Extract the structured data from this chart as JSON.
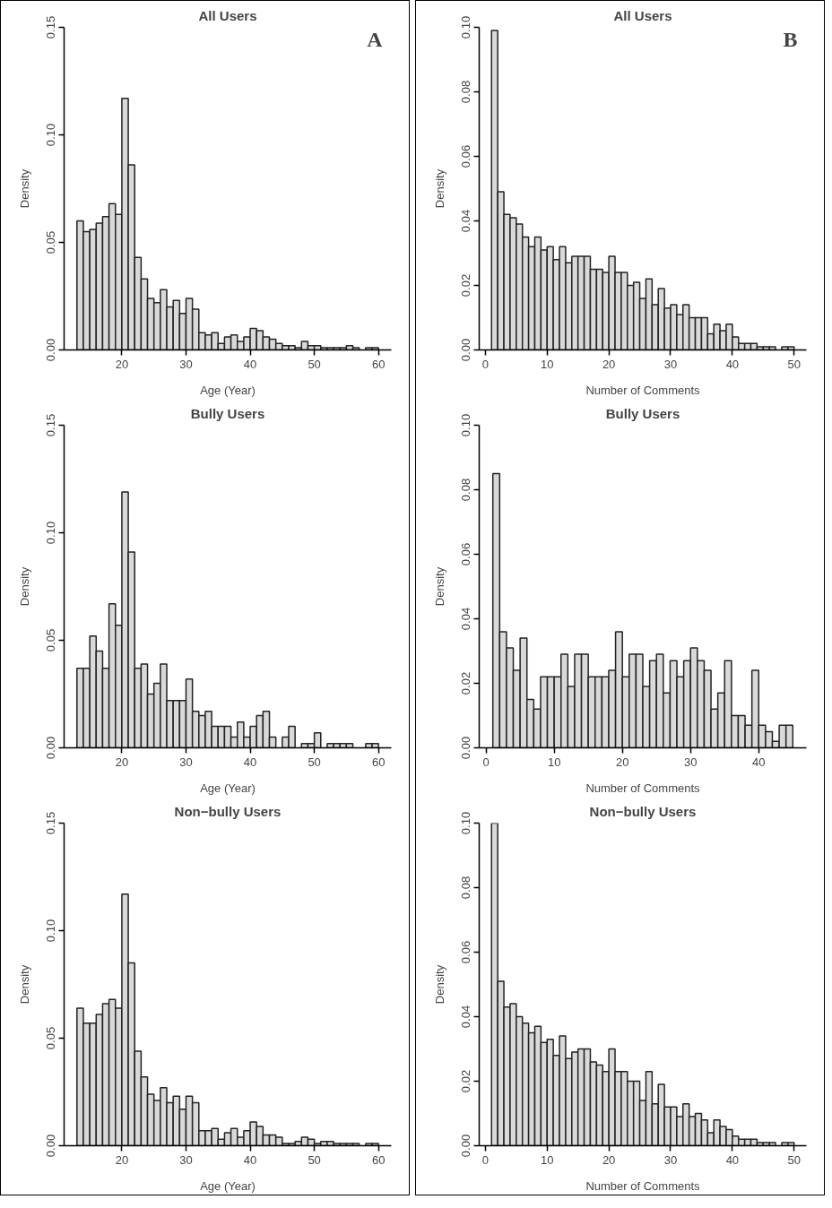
{
  "chart_data": [
    {
      "type": "histogram",
      "title": "All Users",
      "annotations": [
        "A"
      ],
      "xlabel": "Age (Year)",
      "ylabel": "Density",
      "color": "#d9d9d9",
      "xlim": [
        11,
        62
      ],
      "xticks": [
        20,
        30,
        40,
        50,
        60
      ],
      "ylim": [
        0,
        0.15
      ],
      "yticks": [
        {
          "value": 0,
          "label": "0.00"
        },
        {
          "value": 0.05,
          "label": "0.05"
        },
        {
          "value": 0.1,
          "label": "0.10"
        },
        {
          "value": 0.15,
          "label": "0.15"
        }
      ],
      "grid": false,
      "bins": [
        13,
        14,
        15,
        16,
        17,
        18,
        19,
        20,
        21,
        22,
        23,
        24,
        25,
        26,
        27,
        28,
        29,
        30,
        31,
        32,
        33,
        34,
        35,
        36,
        37,
        38,
        39,
        40,
        41,
        42,
        43,
        44,
        45,
        46,
        47,
        48,
        49,
        50,
        51,
        52,
        53,
        54,
        55,
        56,
        57,
        58,
        59,
        60
      ],
      "values": [
        0.06,
        0.055,
        0.056,
        0.059,
        0.062,
        0.068,
        0.063,
        0.117,
        0.086,
        0.043,
        0.033,
        0.024,
        0.022,
        0.028,
        0.02,
        0.023,
        0.017,
        0.024,
        0.019,
        0.008,
        0.007,
        0.008,
        0.003,
        0.006,
        0.007,
        0.004,
        0.006,
        0.01,
        0.009,
        0.006,
        0.005,
        0.003,
        0.002,
        0.002,
        0.001,
        0.004,
        0.002,
        0.002,
        0.001,
        0.001,
        0.001,
        0.001,
        0.002,
        0.001,
        0.0,
        0.001,
        0.001
      ]
    },
    {
      "type": "histogram",
      "title": "All Users",
      "annotations": [
        "B"
      ],
      "xlabel": "Number of Comments",
      "ylabel": "Density",
      "color": "#d9d9d9",
      "xlim": [
        -1,
        52
      ],
      "xticks": [
        0,
        10,
        20,
        30,
        40,
        50
      ],
      "ylim": [
        0,
        0.1
      ],
      "yticks": [
        {
          "value": 0,
          "label": "0.00"
        },
        {
          "value": 0.02,
          "label": "0.02"
        },
        {
          "value": 0.04,
          "label": "0.04"
        },
        {
          "value": 0.06,
          "label": "0.06"
        },
        {
          "value": 0.08,
          "label": "0.08"
        },
        {
          "value": 0.1,
          "label": "0.10"
        }
      ],
      "grid": false,
      "bins": [
        1,
        2,
        3,
        4,
        5,
        6,
        7,
        8,
        9,
        10,
        11,
        12,
        13,
        14,
        15,
        16,
        17,
        18,
        19,
        20,
        21,
        22,
        23,
        24,
        25,
        26,
        27,
        28,
        29,
        30,
        31,
        32,
        33,
        34,
        35,
        36,
        37,
        38,
        39,
        40,
        41,
        42,
        43,
        44,
        45,
        46,
        47,
        48,
        49,
        50
      ],
      "values": [
        0.099,
        0.049,
        0.042,
        0.041,
        0.039,
        0.035,
        0.032,
        0.035,
        0.031,
        0.032,
        0.028,
        0.032,
        0.027,
        0.029,
        0.029,
        0.029,
        0.025,
        0.025,
        0.024,
        0.029,
        0.024,
        0.024,
        0.02,
        0.021,
        0.016,
        0.022,
        0.014,
        0.019,
        0.013,
        0.014,
        0.011,
        0.014,
        0.01,
        0.01,
        0.01,
        0.005,
        0.008,
        0.006,
        0.008,
        0.004,
        0.002,
        0.002,
        0.002,
        0.001,
        0.001,
        0.001,
        0.0,
        0.001,
        0.001
      ]
    },
    {
      "type": "histogram",
      "title": "Bully Users",
      "xlabel": "Age (Year)",
      "ylabel": "Density",
      "color": "#d9d9d9",
      "xlim": [
        11,
        62
      ],
      "xticks": [
        20,
        30,
        40,
        50,
        60
      ],
      "ylim": [
        0,
        0.15
      ],
      "yticks": [
        {
          "value": 0,
          "label": "0.00"
        },
        {
          "value": 0.05,
          "label": "0.05"
        },
        {
          "value": 0.1,
          "label": "0.10"
        },
        {
          "value": 0.15,
          "label": "0.15"
        }
      ],
      "grid": false,
      "bins": [
        13,
        14,
        15,
        16,
        17,
        18,
        19,
        20,
        21,
        22,
        23,
        24,
        25,
        26,
        27,
        28,
        29,
        30,
        31,
        32,
        33,
        34,
        35,
        36,
        37,
        38,
        39,
        40,
        41,
        42,
        43,
        44,
        45,
        46,
        47,
        48,
        49,
        50,
        51,
        52,
        53,
        54,
        55,
        56,
        57,
        58,
        59,
        60
      ],
      "values": [
        0.037,
        0.037,
        0.052,
        0.045,
        0.037,
        0.067,
        0.057,
        0.119,
        0.091,
        0.037,
        0.039,
        0.025,
        0.03,
        0.039,
        0.022,
        0.022,
        0.022,
        0.032,
        0.017,
        0.015,
        0.017,
        0.01,
        0.01,
        0.01,
        0.005,
        0.012,
        0.005,
        0.01,
        0.015,
        0.017,
        0.005,
        0.0,
        0.005,
        0.01,
        0.0,
        0.002,
        0.002,
        0.007,
        0.0,
        0.002,
        0.002,
        0.002,
        0.002,
        0.0,
        0.0,
        0.002,
        0.002
      ]
    },
    {
      "type": "histogram",
      "title": "Bully Users",
      "xlabel": "Number of Comments",
      "ylabel": "Density",
      "color": "#d9d9d9",
      "xlim": [
        -1,
        47
      ],
      "xticks": [
        0,
        10,
        20,
        30,
        40
      ],
      "ylim": [
        0,
        0.1
      ],
      "yticks": [
        {
          "value": 0,
          "label": "0.00"
        },
        {
          "value": 0.02,
          "label": "0.02"
        },
        {
          "value": 0.04,
          "label": "0.04"
        },
        {
          "value": 0.06,
          "label": "0.06"
        },
        {
          "value": 0.08,
          "label": "0.08"
        },
        {
          "value": 0.1,
          "label": "0.10"
        }
      ],
      "grid": false,
      "bins": [
        1,
        2,
        3,
        4,
        5,
        6,
        7,
        8,
        9,
        10,
        11,
        12,
        13,
        14,
        15,
        16,
        17,
        18,
        19,
        20,
        21,
        22,
        23,
        24,
        25,
        26,
        27,
        28,
        29,
        30,
        31,
        32,
        33,
        34,
        35,
        36,
        37,
        38,
        39,
        40,
        41,
        42,
        43,
        44,
        45
      ],
      "values": [
        0.085,
        0.036,
        0.031,
        0.024,
        0.034,
        0.015,
        0.012,
        0.022,
        0.022,
        0.022,
        0.029,
        0.019,
        0.029,
        0.029,
        0.022,
        0.022,
        0.022,
        0.024,
        0.036,
        0.022,
        0.029,
        0.029,
        0.019,
        0.027,
        0.029,
        0.017,
        0.027,
        0.022,
        0.027,
        0.031,
        0.027,
        0.024,
        0.012,
        0.017,
        0.027,
        0.01,
        0.01,
        0.007,
        0.024,
        0.007,
        0.005,
        0.002,
        0.007,
        0.007
      ]
    },
    {
      "type": "histogram",
      "title": "Non−bully Users",
      "xlabel": "Age (Year)",
      "ylabel": "Density",
      "color": "#d9d9d9",
      "xlim": [
        11,
        62
      ],
      "xticks": [
        20,
        30,
        40,
        50,
        60
      ],
      "ylim": [
        0,
        0.15
      ],
      "yticks": [
        {
          "value": 0,
          "label": "0.00"
        },
        {
          "value": 0.05,
          "label": "0.05"
        },
        {
          "value": 0.1,
          "label": "0.10"
        },
        {
          "value": 0.15,
          "label": "0.15"
        }
      ],
      "grid": false,
      "bins": [
        13,
        14,
        15,
        16,
        17,
        18,
        19,
        20,
        21,
        22,
        23,
        24,
        25,
        26,
        27,
        28,
        29,
        30,
        31,
        32,
        33,
        34,
        35,
        36,
        37,
        38,
        39,
        40,
        41,
        42,
        43,
        44,
        45,
        46,
        47,
        48,
        49,
        50,
        51,
        52,
        53,
        54,
        55,
        56,
        57,
        58,
        59,
        60
      ],
      "values": [
        0.064,
        0.057,
        0.057,
        0.061,
        0.066,
        0.068,
        0.064,
        0.117,
        0.085,
        0.044,
        0.032,
        0.024,
        0.021,
        0.027,
        0.02,
        0.023,
        0.017,
        0.023,
        0.02,
        0.007,
        0.007,
        0.008,
        0.003,
        0.006,
        0.008,
        0.004,
        0.007,
        0.011,
        0.009,
        0.005,
        0.005,
        0.004,
        0.001,
        0.001,
        0.002,
        0.004,
        0.003,
        0.001,
        0.002,
        0.002,
        0.001,
        0.001,
        0.001,
        0.001,
        0.0,
        0.001,
        0.001
      ]
    },
    {
      "type": "histogram",
      "title": "Non−bully Users",
      "xlabel": "Number of Comments",
      "ylabel": "Density",
      "color": "#d9d9d9",
      "xlim": [
        -1,
        52
      ],
      "xticks": [
        0,
        10,
        20,
        30,
        40,
        50
      ],
      "ylim": [
        0,
        0.1
      ],
      "yticks": [
        {
          "value": 0,
          "label": "0.00"
        },
        {
          "value": 0.02,
          "label": "0.02"
        },
        {
          "value": 0.04,
          "label": "0.04"
        },
        {
          "value": 0.06,
          "label": "0.06"
        },
        {
          "value": 0.08,
          "label": "0.08"
        },
        {
          "value": 0.1,
          "label": "0.10"
        }
      ],
      "grid": false,
      "bins": [
        1,
        2,
        3,
        4,
        5,
        6,
        7,
        8,
        9,
        10,
        11,
        12,
        13,
        14,
        15,
        16,
        17,
        18,
        19,
        20,
        21,
        22,
        23,
        24,
        25,
        26,
        27,
        28,
        29,
        30,
        31,
        32,
        33,
        34,
        35,
        36,
        37,
        38,
        39,
        40,
        41,
        42,
        43,
        44,
        45,
        46,
        47,
        48,
        49,
        50
      ],
      "values": [
        0.1,
        0.051,
        0.043,
        0.044,
        0.04,
        0.038,
        0.035,
        0.037,
        0.032,
        0.033,
        0.028,
        0.034,
        0.027,
        0.029,
        0.03,
        0.03,
        0.026,
        0.025,
        0.023,
        0.03,
        0.023,
        0.023,
        0.02,
        0.02,
        0.014,
        0.023,
        0.013,
        0.019,
        0.012,
        0.012,
        0.009,
        0.013,
        0.009,
        0.01,
        0.008,
        0.004,
        0.008,
        0.006,
        0.005,
        0.003,
        0.002,
        0.002,
        0.002,
        0.001,
        0.001,
        0.001,
        0.0,
        0.001,
        0.001
      ]
    }
  ]
}
